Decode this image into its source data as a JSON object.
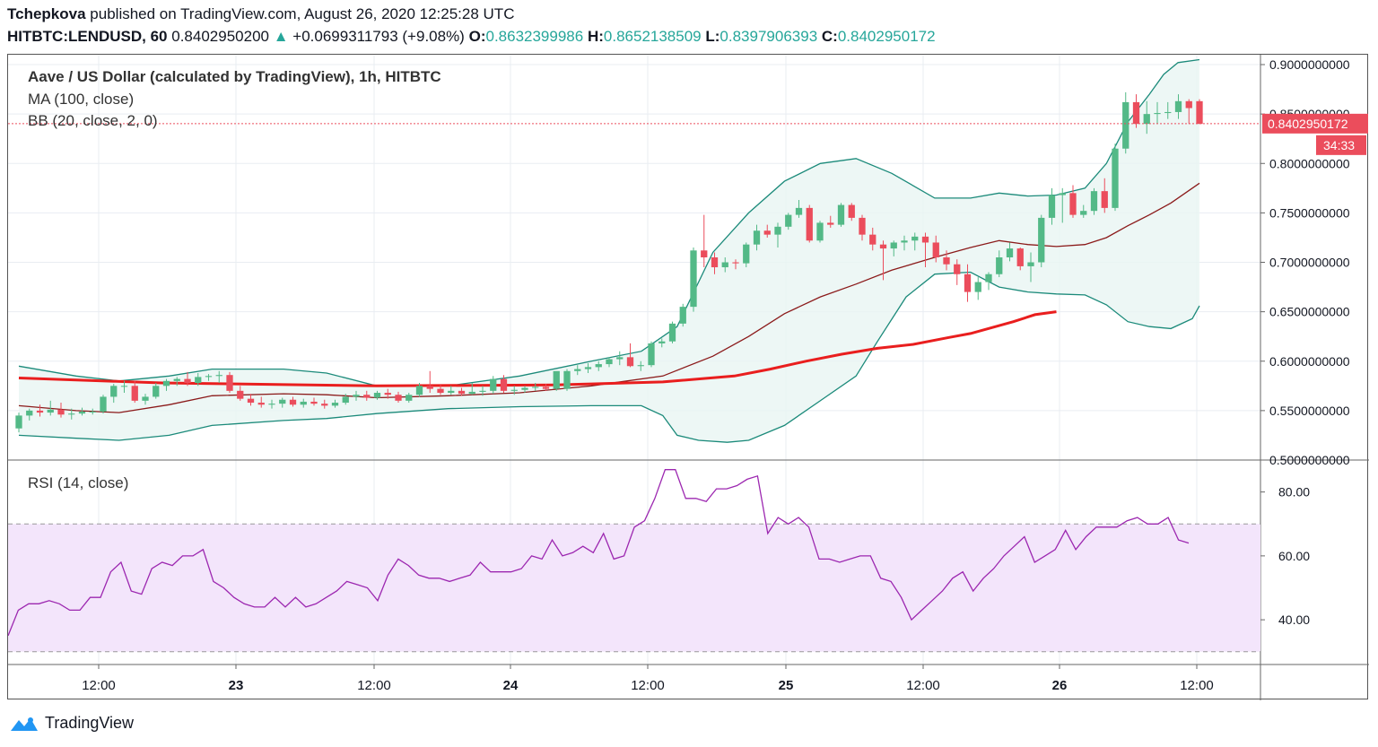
{
  "header": {
    "author": "Tchepkova",
    "published_text": "published on TradingView.com, August 26, 2020 12:25:28 UTC",
    "symbol": "HITBTC:LENDUSD, 60",
    "price": "0.8402950200",
    "change_arrow": "▲",
    "change": "+0.0699311793 (+9.08%)",
    "o_label": "O:",
    "o_value": "0.8632399986",
    "h_label": "H:",
    "h_value": "0.8652138509",
    "l_label": "L:",
    "l_value": "0.8397906393",
    "c_label": "C:",
    "c_value": "0.8402950172"
  },
  "legend": {
    "title": "Aave / US Dollar (calculated by TradingView), 1h, HITBTC",
    "ma": "MA (100, close)",
    "bb": "BB (20, close, 2, 0)",
    "rsi": "RSI (14, close)"
  },
  "price_scale": {
    "ticks": [
      "0.9000000000",
      "0.8500000000",
      "0.8000000000",
      "0.7500000000",
      "0.7000000000",
      "0.6500000000",
      "0.6000000000",
      "0.5500000000",
      "0.5000000000"
    ],
    "last_price_label": "0.8402950172",
    "countdown": "34:33"
  },
  "rsi_scale": {
    "ticks": [
      "80.00",
      "60.00",
      "40.00"
    ]
  },
  "time_axis": {
    "labels": [
      "12:00",
      "23",
      "12:00",
      "24",
      "12:00",
      "25",
      "12:00",
      "26",
      "12:00"
    ]
  },
  "footer": {
    "brand": "TradingView"
  },
  "colors": {
    "up": "#26a69a",
    "up_candle": "#53b987",
    "down": "#eb4d5c",
    "ma": "#e91e1e",
    "bb_band": "#1b8a7a",
    "bb_basis": "#8b1a1a",
    "bb_fill": "#e8f5f3",
    "rsi_line": "#9c27b0",
    "rsi_fill": "#f3e5fb"
  },
  "chart_data": [
    {
      "type": "candlestick",
      "title": "Aave / US Dollar (calculated by TradingView), 1h, HITBTC",
      "y_range": [
        0.5,
        0.91
      ],
      "x_tick_labels": [
        "12:00",
        "23",
        "12:00",
        "24",
        "12:00",
        "25",
        "12:00",
        "26",
        "12:00"
      ],
      "candles_ohlc": [
        [
          0.532,
          0.548,
          0.528,
          0.545
        ],
        [
          0.545,
          0.552,
          0.54,
          0.55
        ],
        [
          0.55,
          0.556,
          0.544,
          0.548
        ],
        [
          0.548,
          0.56,
          0.545,
          0.551
        ],
        [
          0.551,
          0.558,
          0.543,
          0.546
        ],
        [
          0.546,
          0.552,
          0.541,
          0.547
        ],
        [
          0.547,
          0.553,
          0.545,
          0.549
        ],
        [
          0.549,
          0.552,
          0.546,
          0.549
        ],
        [
          0.549,
          0.566,
          0.547,
          0.564
        ],
        [
          0.564,
          0.577,
          0.558,
          0.575
        ],
        [
          0.575,
          0.58,
          0.568,
          0.575
        ],
        [
          0.575,
          0.58,
          0.558,
          0.56
        ],
        [
          0.56,
          0.567,
          0.556,
          0.564
        ],
        [
          0.564,
          0.578,
          0.562,
          0.575
        ],
        [
          0.575,
          0.582,
          0.57,
          0.58
        ],
        [
          0.58,
          0.584,
          0.575,
          0.582
        ],
        [
          0.582,
          0.589,
          0.575,
          0.578
        ],
        [
          0.578,
          0.588,
          0.575,
          0.584
        ],
        [
          0.584,
          0.587,
          0.58,
          0.585
        ],
        [
          0.585,
          0.59,
          0.578,
          0.586
        ],
        [
          0.586,
          0.589,
          0.568,
          0.57
        ],
        [
          0.57,
          0.575,
          0.56,
          0.562
        ],
        [
          0.562,
          0.567,
          0.555,
          0.558
        ],
        [
          0.558,
          0.564,
          0.553,
          0.556
        ],
        [
          0.556,
          0.561,
          0.552,
          0.557
        ],
        [
          0.557,
          0.563,
          0.553,
          0.561
        ],
        [
          0.561,
          0.564,
          0.554,
          0.556
        ],
        [
          0.556,
          0.562,
          0.553,
          0.559
        ],
        [
          0.559,
          0.563,
          0.555,
          0.557
        ],
        [
          0.557,
          0.561,
          0.552,
          0.555
        ],
        [
          0.555,
          0.561,
          0.553,
          0.558
        ],
        [
          0.558,
          0.567,
          0.556,
          0.564
        ],
        [
          0.564,
          0.57,
          0.56,
          0.566
        ],
        [
          0.566,
          0.57,
          0.56,
          0.563
        ],
        [
          0.563,
          0.57,
          0.561,
          0.568
        ],
        [
          0.568,
          0.572,
          0.562,
          0.566
        ],
        [
          0.566,
          0.569,
          0.558,
          0.56
        ],
        [
          0.56,
          0.568,
          0.558,
          0.566
        ],
        [
          0.566,
          0.578,
          0.564,
          0.575
        ],
        [
          0.575,
          0.59,
          0.568,
          0.572
        ],
        [
          0.572,
          0.576,
          0.566,
          0.568
        ],
        [
          0.568,
          0.575,
          0.566,
          0.57
        ],
        [
          0.57,
          0.573,
          0.565,
          0.567
        ],
        [
          0.567,
          0.578,
          0.566,
          0.569
        ],
        [
          0.569,
          0.575,
          0.565,
          0.57
        ],
        [
          0.57,
          0.585,
          0.567,
          0.582
        ],
        [
          0.582,
          0.586,
          0.568,
          0.57
        ],
        [
          0.57,
          0.575,
          0.566,
          0.571
        ],
        [
          0.571,
          0.575,
          0.568,
          0.573
        ],
        [
          0.573,
          0.578,
          0.57,
          0.574
        ],
        [
          0.574,
          0.577,
          0.57,
          0.572
        ],
        [
          0.572,
          0.583,
          0.57,
          0.59
        ],
        [
          0.572,
          0.592,
          0.57,
          0.59
        ],
        [
          0.59,
          0.596,
          0.586,
          0.592
        ],
        [
          0.592,
          0.598,
          0.588,
          0.594
        ],
        [
          0.594,
          0.6,
          0.59,
          0.597
        ],
        [
          0.597,
          0.604,
          0.594,
          0.602
        ],
        [
          0.602,
          0.61,
          0.596,
          0.604
        ],
        [
          0.604,
          0.618,
          0.594,
          0.595
        ],
        [
          0.595,
          0.6,
          0.59,
          0.596
        ],
        [
          0.596,
          0.62,
          0.594,
          0.618
        ],
        [
          0.618,
          0.623,
          0.614,
          0.62
        ],
        [
          0.62,
          0.64,
          0.618,
          0.638
        ],
        [
          0.638,
          0.658,
          0.635,
          0.655
        ],
        [
          0.655,
          0.715,
          0.65,
          0.712
        ],
        [
          0.712,
          0.748,
          0.695,
          0.705
        ],
        [
          0.705,
          0.71,
          0.688,
          0.695
        ],
        [
          0.695,
          0.705,
          0.69,
          0.7
        ],
        [
          0.7,
          0.703,
          0.693,
          0.699
        ],
        [
          0.699,
          0.72,
          0.695,
          0.718
        ],
        [
          0.718,
          0.738,
          0.712,
          0.732
        ],
        [
          0.732,
          0.738,
          0.725,
          0.728
        ],
        [
          0.728,
          0.74,
          0.715,
          0.736
        ],
        [
          0.736,
          0.75,
          0.733,
          0.748
        ],
        [
          0.748,
          0.763,
          0.745,
          0.755
        ],
        [
          0.755,
          0.758,
          0.72,
          0.722
        ],
        [
          0.722,
          0.742,
          0.72,
          0.74
        ],
        [
          0.74,
          0.747,
          0.735,
          0.738
        ],
        [
          0.738,
          0.76,
          0.736,
          0.758
        ],
        [
          0.758,
          0.76,
          0.742,
          0.745
        ],
        [
          0.745,
          0.748,
          0.722,
          0.728
        ],
        [
          0.728,
          0.735,
          0.712,
          0.718
        ],
        [
          0.718,
          0.722,
          0.682,
          0.714
        ],
        [
          0.714,
          0.722,
          0.706,
          0.72
        ],
        [
          0.72,
          0.727,
          0.712,
          0.722
        ],
        [
          0.722,
          0.73,
          0.712,
          0.726
        ],
        [
          0.726,
          0.73,
          0.695,
          0.72
        ],
        [
          0.72,
          0.727,
          0.7,
          0.705
        ],
        [
          0.705,
          0.712,
          0.692,
          0.698
        ],
        [
          0.698,
          0.703,
          0.677,
          0.688
        ],
        [
          0.688,
          0.698,
          0.66,
          0.67
        ],
        [
          0.67,
          0.685,
          0.662,
          0.68
        ],
        [
          0.68,
          0.69,
          0.672,
          0.688
        ],
        [
          0.688,
          0.712,
          0.685,
          0.705
        ],
        [
          0.705,
          0.72,
          0.701,
          0.714
        ],
        [
          0.714,
          0.715,
          0.692,
          0.696
        ],
        [
          0.696,
          0.71,
          0.68,
          0.7
        ],
        [
          0.7,
          0.748,
          0.695,
          0.745
        ],
        [
          0.745,
          0.775,
          0.738,
          0.768
        ],
        [
          0.768,
          0.775,
          0.74,
          0.77
        ],
        [
          0.77,
          0.778,
          0.745,
          0.748
        ],
        [
          0.748,
          0.758,
          0.745,
          0.752
        ],
        [
          0.752,
          0.775,
          0.748,
          0.772
        ],
        [
          0.772,
          0.785,
          0.75,
          0.755
        ],
        [
          0.755,
          0.82,
          0.752,
          0.815
        ],
        [
          0.815,
          0.872,
          0.81,
          0.862
        ],
        [
          0.862,
          0.87,
          0.836,
          0.84
        ],
        [
          0.84,
          0.863,
          0.83,
          0.85
        ],
        [
          0.85,
          0.862,
          0.84,
          0.851
        ],
        [
          0.851,
          0.862,
          0.845,
          0.852
        ],
        [
          0.852,
          0.87,
          0.845,
          0.863
        ],
        [
          0.863,
          0.865,
          0.84,
          0.856
        ],
        [
          0.863,
          0.865,
          0.84,
          0.84
        ]
      ],
      "ma_100_points": [
        [
          0,
          0.583
        ],
        [
          20,
          0.578
        ],
        [
          50,
          0.575
        ],
        [
          75,
          0.576
        ],
        [
          80,
          0.577
        ],
        [
          90,
          0.579
        ],
        [
          100,
          0.585
        ],
        [
          105,
          0.592
        ],
        [
          110,
          0.6
        ],
        [
          115,
          0.607
        ],
        [
          120,
          0.613
        ],
        [
          125,
          0.617
        ],
        [
          130,
          0.624
        ],
        [
          133,
          0.628
        ],
        [
          136,
          0.634
        ],
        [
          139,
          0.64
        ],
        [
          142,
          0.647
        ],
        [
          145,
          0.65
        ]
      ],
      "bb_upper_points": [
        [
          0,
          0.595
        ],
        [
          8,
          0.585
        ],
        [
          14,
          0.58
        ],
        [
          21,
          0.585
        ],
        [
          27,
          0.592
        ],
        [
          37,
          0.592
        ],
        [
          43,
          0.588
        ],
        [
          50,
          0.575
        ],
        [
          60,
          0.575
        ],
        [
          70,
          0.585
        ],
        [
          80,
          0.6
        ],
        [
          87,
          0.61
        ],
        [
          92,
          0.635
        ],
        [
          97,
          0.71
        ],
        [
          102,
          0.75
        ],
        [
          107,
          0.782
        ],
        [
          112,
          0.8
        ],
        [
          117,
          0.805
        ],
        [
          122,
          0.79
        ],
        [
          128,
          0.765
        ],
        [
          133,
          0.765
        ],
        [
          137,
          0.77
        ],
        [
          141,
          0.767
        ],
        [
          145,
          0.768
        ],
        [
          149,
          0.775
        ],
        [
          152,
          0.8
        ],
        [
          155,
          0.842
        ],
        [
          158,
          0.87
        ],
        [
          160,
          0.89
        ],
        [
          162,
          0.902
        ],
        [
          165,
          0.905
        ]
      ],
      "bb_basis_points": [
        [
          0,
          0.555
        ],
        [
          8,
          0.55
        ],
        [
          14,
          0.548
        ],
        [
          21,
          0.556
        ],
        [
          27,
          0.565
        ],
        [
          37,
          0.567
        ],
        [
          43,
          0.566
        ],
        [
          50,
          0.563
        ],
        [
          60,
          0.565
        ],
        [
          70,
          0.568
        ],
        [
          80,
          0.575
        ],
        [
          90,
          0.585
        ],
        [
          97,
          0.605
        ],
        [
          102,
          0.625
        ],
        [
          107,
          0.648
        ],
        [
          112,
          0.665
        ],
        [
          117,
          0.678
        ],
        [
          122,
          0.692
        ],
        [
          128,
          0.705
        ],
        [
          133,
          0.715
        ],
        [
          137,
          0.722
        ],
        [
          141,
          0.718
        ],
        [
          145,
          0.716
        ],
        [
          149,
          0.718
        ],
        [
          152,
          0.725
        ],
        [
          155,
          0.737
        ],
        [
          158,
          0.748
        ],
        [
          161,
          0.76
        ],
        [
          165,
          0.78
        ]
      ],
      "bb_lower_points": [
        [
          0,
          0.525
        ],
        [
          8,
          0.522
        ],
        [
          14,
          0.52
        ],
        [
          21,
          0.525
        ],
        [
          27,
          0.535
        ],
        [
          37,
          0.54
        ],
        [
          43,
          0.542
        ],
        [
          50,
          0.547
        ],
        [
          60,
          0.552
        ],
        [
          70,
          0.554
        ],
        [
          80,
          0.555
        ],
        [
          87,
          0.555
        ],
        [
          90,
          0.545
        ],
        [
          92,
          0.525
        ],
        [
          95,
          0.52
        ],
        [
          99,
          0.518
        ],
        [
          102,
          0.52
        ],
        [
          107,
          0.535
        ],
        [
          112,
          0.56
        ],
        [
          117,
          0.585
        ],
        [
          120,
          0.62
        ],
        [
          124,
          0.665
        ],
        [
          128,
          0.688
        ],
        [
          133,
          0.69
        ],
        [
          137,
          0.675
        ],
        [
          141,
          0.67
        ],
        [
          145,
          0.668
        ],
        [
          149,
          0.667
        ],
        [
          152,
          0.657
        ],
        [
          155,
          0.64
        ],
        [
          158,
          0.635
        ],
        [
          161,
          0.633
        ],
        [
          164,
          0.643
        ],
        [
          165,
          0.656
        ]
      ],
      "last_price": 0.8402950172
    },
    {
      "type": "line",
      "title": "RSI (14, close)",
      "y_range": [
        26,
        90
      ],
      "bands": [
        30,
        70
      ],
      "x_tick_labels": [
        "12:00",
        "23",
        "12:00",
        "24",
        "12:00",
        "25",
        "12:00",
        "26",
        "12:00"
      ],
      "values": [
        35,
        43,
        45,
        45,
        46,
        45,
        43,
        43,
        47,
        47,
        55,
        58,
        49,
        48,
        56,
        58,
        57,
        60,
        60,
        62,
        52,
        50,
        47,
        45,
        44,
        44,
        47,
        44,
        47,
        44,
        45,
        47,
        49,
        52,
        51,
        50,
        46,
        54,
        59,
        57,
        54,
        53,
        53,
        52,
        53,
        54,
        58,
        55,
        55,
        55,
        56,
        60,
        59,
        65,
        60,
        61,
        63,
        61,
        67,
        59,
        60,
        69,
        71,
        78,
        87,
        87,
        78,
        78,
        77,
        81,
        81,
        82,
        84,
        85,
        67,
        72,
        70,
        72,
        69,
        59,
        59,
        58,
        59,
        60,
        60,
        53,
        52,
        47,
        40,
        43,
        46,
        49,
        53,
        55,
        49,
        53,
        56,
        60,
        63,
        66,
        58,
        60,
        62,
        68,
        62,
        66,
        69,
        69,
        69,
        71,
        72,
        70,
        70,
        72,
        65,
        64
      ],
      "ylim": [
        26,
        90
      ]
    }
  ]
}
